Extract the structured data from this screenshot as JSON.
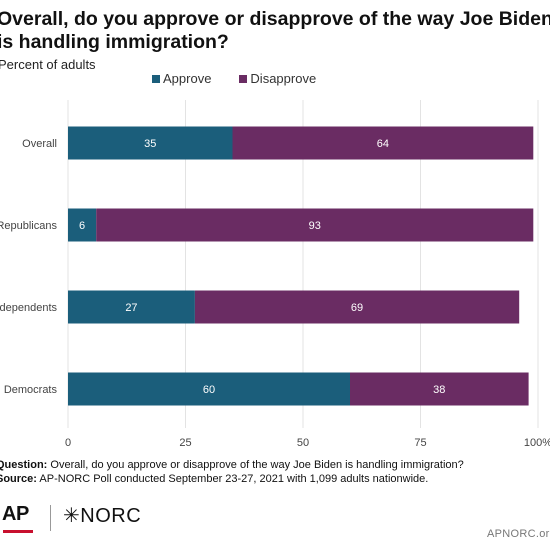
{
  "title": "Overall, do you approve or disapprove of the way Joe Biden is handling immigration?",
  "subtitle": "Percent of adults",
  "colors": {
    "approve": "#1b5e7b",
    "disapprove": "#6a2c63",
    "grid": "#e3e3e3",
    "axis_text": "#444444"
  },
  "chart_data": {
    "type": "bar",
    "orientation": "horizontal",
    "stacked": true,
    "categories": [
      "Overall",
      "Republicans",
      "Independents",
      "Democrats"
    ],
    "series": [
      {
        "name": "Approve",
        "values": [
          35,
          6,
          27,
          60
        ]
      },
      {
        "name": "Disapprove",
        "values": [
          64,
          93,
          69,
          38
        ]
      }
    ],
    "xlim": [
      0,
      100
    ],
    "xticks": [
      "0",
      "25",
      "50",
      "75",
      "100%"
    ],
    "tick_values": [
      0,
      25,
      50,
      75,
      100
    ],
    "grid": true,
    "legend": "top"
  },
  "footer": {
    "question_label": "Question:",
    "question_text": "Overall, do you approve or disapprove of the way Joe Biden is handling immigration?",
    "source_label": "Source:",
    "source_text": "AP-NORC Poll conducted September 23-27, 2021 with 1,099 adults nationwide.",
    "ap_logo": "AP",
    "norc_logo": "✳NORC",
    "site": "APNORC.org"
  }
}
